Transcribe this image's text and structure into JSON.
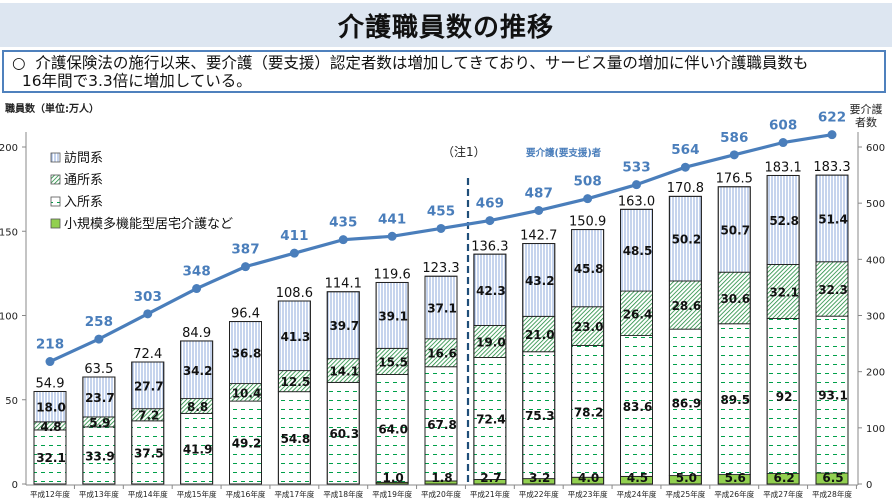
{
  "header": {
    "title": "介護職員数の推移"
  },
  "summary": {
    "line1": "○  介護保険法の施行以来、要介護（要支援）認定者数は増加してきており、サービス量の増加に伴い介護職員数も",
    "line2": "  16年間で3.3倍に増加している。"
  },
  "chart_data": {
    "type": "bar",
    "stacked": true,
    "title": "介護職員数の推移",
    "ylabel": "職員数（単位:万人）",
    "y2label_line1": "要介護",
    "y2label_line2": "者数",
    "ylim": [
      0,
      200
    ],
    "y2lim": [
      0,
      600
    ],
    "yticks": [
      0,
      50,
      100,
      150,
      200
    ],
    "y2ticks": [
      0,
      100,
      200,
      300,
      400,
      500,
      600
    ],
    "grid": false,
    "legend_position": "top-left",
    "note": "（注1）",
    "line_label": "要介護(要支援)者",
    "categories": [
      "平成12年度",
      "平成13年度",
      "平成14年度",
      "平成15年度",
      "平成16年度",
      "平成17年度",
      "平成18年度",
      "平成19年度",
      "平成20年度",
      "平成21年度",
      "平成22年度",
      "平成23年度",
      "平成24年度",
      "平成25年度",
      "平成26年度",
      "平成27年度",
      "平成28年度"
    ],
    "series": [
      {
        "name": "小規模多機能型居宅介護など",
        "color": "#92d050",
        "values": [
          null,
          null,
          null,
          null,
          null,
          null,
          null,
          1.0,
          1.8,
          2.7,
          3.2,
          4.0,
          4.5,
          5.0,
          5.6,
          6.2,
          6.5
        ],
        "labels": [
          null,
          null,
          null,
          null,
          null,
          null,
          null,
          "1.0",
          "1.8",
          "2.7",
          "3.2",
          "4.0",
          "4.5",
          "5.0",
          "5.6",
          "6.2",
          "6.5"
        ]
      },
      {
        "name": "入所系",
        "color": "#00a04a",
        "values": [
          32.1,
          33.9,
          37.5,
          41.9,
          49.2,
          54.8,
          60.3,
          64.0,
          67.8,
          72.4,
          75.3,
          78.2,
          83.6,
          86.9,
          89.5,
          92,
          93.1
        ],
        "labels": [
          "32.1",
          "33.9",
          "37.5",
          "41.9",
          "49.2",
          "54.8",
          "60.3",
          "64.0",
          "67.8",
          "72.4",
          "75.3",
          "78.2",
          "83.6",
          "86.9",
          "89.5",
          "92",
          "93.1"
        ]
      },
      {
        "name": "通所系",
        "color": "#1e8a3c",
        "values": [
          4.8,
          5.9,
          7.2,
          8.8,
          10.4,
          12.5,
          14.1,
          15.5,
          16.6,
          19.0,
          21.0,
          23.0,
          26.4,
          28.6,
          30.6,
          32.1,
          32.3
        ],
        "labels": [
          "4.8",
          "5.9",
          "7.2",
          "8.8",
          "10.4",
          "12.5",
          "14.1",
          "15.5",
          "16.6",
          "19.0",
          "21.0",
          "23.0",
          "26.4",
          "28.6",
          "30.6",
          "32.1",
          "32.3"
        ]
      },
      {
        "name": "訪問系",
        "color": "#8eaadb",
        "values": [
          18.0,
          23.7,
          27.7,
          34.2,
          36.8,
          41.3,
          39.7,
          39.1,
          37.1,
          42.3,
          43.2,
          45.8,
          48.5,
          50.2,
          50.7,
          52.8,
          51.4
        ],
        "labels": [
          "18.0",
          "23.7",
          "27.7",
          "34.2",
          "36.8",
          "41.3",
          "39.7",
          "39.1",
          "37.1",
          "42.3",
          "43.2",
          "45.8",
          "48.5",
          "50.2",
          "50.7",
          "52.8",
          "51.4"
        ]
      }
    ],
    "totals": [
      "54.9",
      "63.5",
      "72.4",
      "84.9",
      "96.4",
      "108.6",
      "114.1",
      "119.6",
      "123.3",
      "136.3",
      "142.7",
      "150.9",
      "163.0",
      "170.8",
      "176.5",
      "183.1",
      "183.3"
    ],
    "total_values": [
      54.9,
      63.5,
      72.4,
      84.9,
      96.4,
      108.6,
      114.1,
      119.6,
      123.3,
      136.3,
      142.7,
      150.9,
      163.0,
      170.8,
      176.5,
      183.1,
      183.3
    ],
    "line_series": {
      "name": "要介護(要支援)者",
      "axis": "right",
      "color": "#4a7ebb",
      "values": [
        218,
        258,
        303,
        348,
        387,
        411,
        435,
        441,
        455,
        469,
        487,
        508,
        533,
        564,
        586,
        608,
        622
      ]
    },
    "legend_order": [
      "訪問系",
      "通所系",
      "入所系",
      "小規模多機能型居宅介護など"
    ]
  }
}
